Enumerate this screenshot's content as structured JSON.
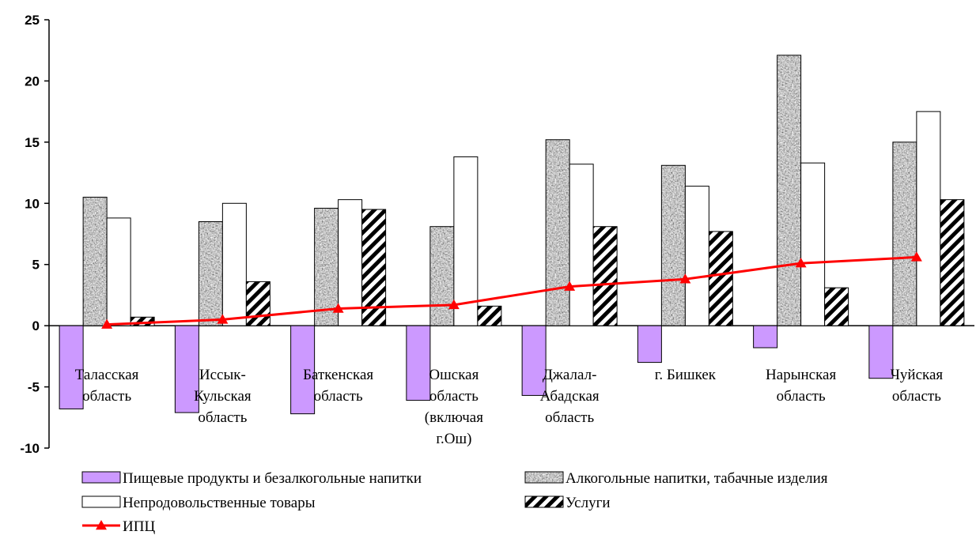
{
  "chart_data": {
    "type": "bar",
    "categories": [
      [
        "Таласская",
        "область"
      ],
      [
        "Иссык-",
        "Кульская",
        "область"
      ],
      [
        "Баткенская",
        "область"
      ],
      [
        "Ошская",
        "область",
        "(включая",
        "г.Ош)"
      ],
      [
        "Джалал-",
        "Абадская",
        "область"
      ],
      [
        "г. Бишкек"
      ],
      [
        "Нарынская",
        "область"
      ],
      [
        "Чуйская",
        "область"
      ]
    ],
    "series": [
      {
        "name": "Пищевые продукты и безалкогольные напитки",
        "kind": "bar",
        "style": "solid",
        "color": "#CC99FF",
        "values": [
          -6.8,
          -7.1,
          -7.2,
          -6.1,
          -5.7,
          -3.0,
          -1.8,
          -4.3
        ]
      },
      {
        "name": "Алкогольные напитки, табачные изделия",
        "kind": "bar",
        "style": "granite",
        "color": "#A0A0A0",
        "values": [
          10.5,
          8.5,
          9.6,
          8.1,
          15.2,
          13.1,
          22.1,
          15.0
        ]
      },
      {
        "name": "Непродовольственные товары",
        "kind": "bar",
        "style": "white",
        "color": "#FFFFFF",
        "values": [
          8.8,
          10.0,
          10.3,
          13.8,
          13.2,
          11.4,
          13.3,
          17.5
        ]
      },
      {
        "name": "Услуги",
        "kind": "bar",
        "style": "hatch",
        "color": "#000000",
        "values": [
          0.7,
          3.6,
          9.5,
          1.6,
          8.1,
          7.7,
          3.1,
          10.3
        ]
      },
      {
        "name": "ИПЦ",
        "kind": "line",
        "style": "line-triangle",
        "color": "#FF0000",
        "values": [
          0.1,
          0.5,
          1.4,
          1.7,
          3.2,
          3.8,
          5.1,
          5.6
        ]
      }
    ],
    "ylim": [
      -10,
      25
    ],
    "yticks": [
      "-10",
      "-5",
      "0",
      "5",
      "10",
      "15",
      "20",
      "25"
    ],
    "grid": false,
    "legend_position": "bottom"
  }
}
